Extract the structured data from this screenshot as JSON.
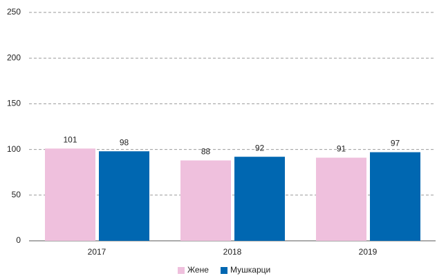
{
  "chart_data": {
    "type": "bar",
    "categories": [
      "2017",
      "2018",
      "2019"
    ],
    "series": [
      {
        "name": "Жене",
        "color": "#efc0dd",
        "values": [
          101,
          88,
          91
        ]
      },
      {
        "name": "Мушкарци",
        "color": "#0067b1",
        "values": [
          98,
          92,
          97
        ]
      }
    ],
    "ylim": [
      0,
      250
    ],
    "yticks": [
      0,
      50,
      100,
      150,
      200,
      250
    ],
    "grid": true,
    "legend": "bottom"
  }
}
